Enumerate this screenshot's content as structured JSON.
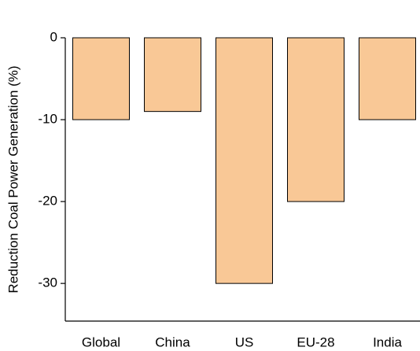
{
  "chart_data": {
    "type": "bar",
    "y_label": "Reduction Coal Power Generation (%)",
    "categories": [
      "Global",
      "China",
      "US",
      "EU-28",
      "India"
    ],
    "values": [
      -10,
      -9,
      -30,
      -20,
      -10
    ],
    "color": "#f9c896",
    "ylim": [
      -34.6,
      0
    ],
    "yticks": [
      0,
      -10,
      -20,
      -30
    ]
  }
}
